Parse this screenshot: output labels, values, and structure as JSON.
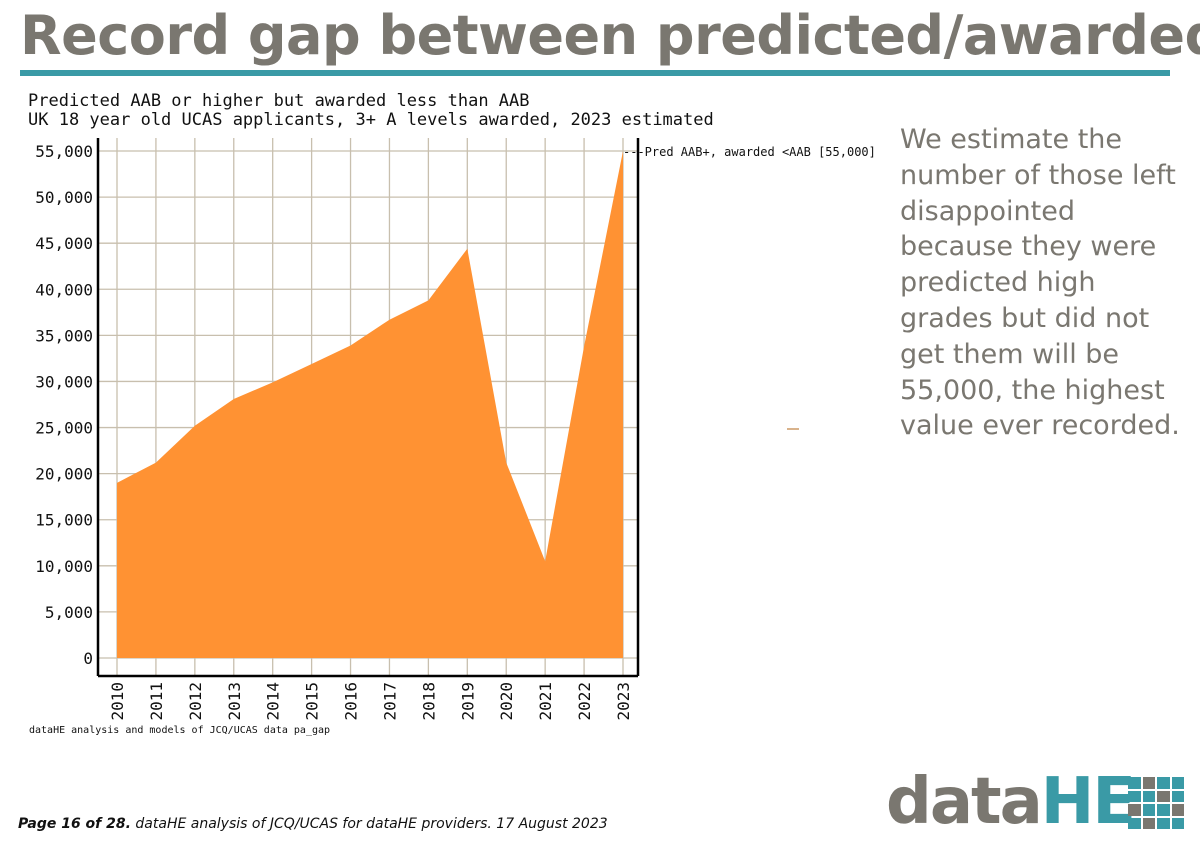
{
  "page": {
    "title": "Record gap between predicted/awarded",
    "side_text": "We estimate the number of those left disappointed because they were predicted high grades but did not get them will be 55,000, the highest value ever recorded.",
    "source_note": "dataHE analysis and models of JCQ/UCAS data pa_gap",
    "footer_bold": "Page 16 of 28.",
    "footer_text": " dataHE analysis of JCQ/UCAS for dataHE providers. 17 August 2023",
    "logo_data": "data",
    "logo_he": "HE"
  },
  "colors": {
    "title": "#7a7770",
    "accent": "#3a9aa6",
    "area_fill": "#ff9233",
    "grid": "#c8bfae"
  },
  "chart_data": {
    "type": "area",
    "title": "Predicted AAB or higher but awarded less than AAB",
    "subtitle": "UK 18 year old UCAS applicants, 3+ A levels awarded, 2023 estimated",
    "x": [
      "2010",
      "2011",
      "2012",
      "2013",
      "2014",
      "2015",
      "2016",
      "2017",
      "2018",
      "2019",
      "2020",
      "2021",
      "2022",
      "2023"
    ],
    "series": [
      {
        "name": "Pred AAB+, awarded <AAB",
        "legend_label": "Pred AAB+, awarded <AAB [55,000]",
        "values": [
          19000,
          21200,
          25200,
          28100,
          29900,
          31900,
          33900,
          36700,
          38800,
          44400,
          21200,
          10500,
          33800,
          55000
        ]
      }
    ],
    "y_ticks": [
      "0",
      "5,000",
      "10,000",
      "15,000",
      "20,000",
      "25,000",
      "30,000",
      "35,000",
      "40,000",
      "45,000",
      "50,000",
      "55,000"
    ],
    "y_tick_values": [
      0,
      5000,
      10000,
      15000,
      20000,
      25000,
      30000,
      35000,
      40000,
      45000,
      50000,
      55000
    ],
    "ylim": [
      0,
      57000
    ],
    "grid": true,
    "legend": "right end label"
  }
}
